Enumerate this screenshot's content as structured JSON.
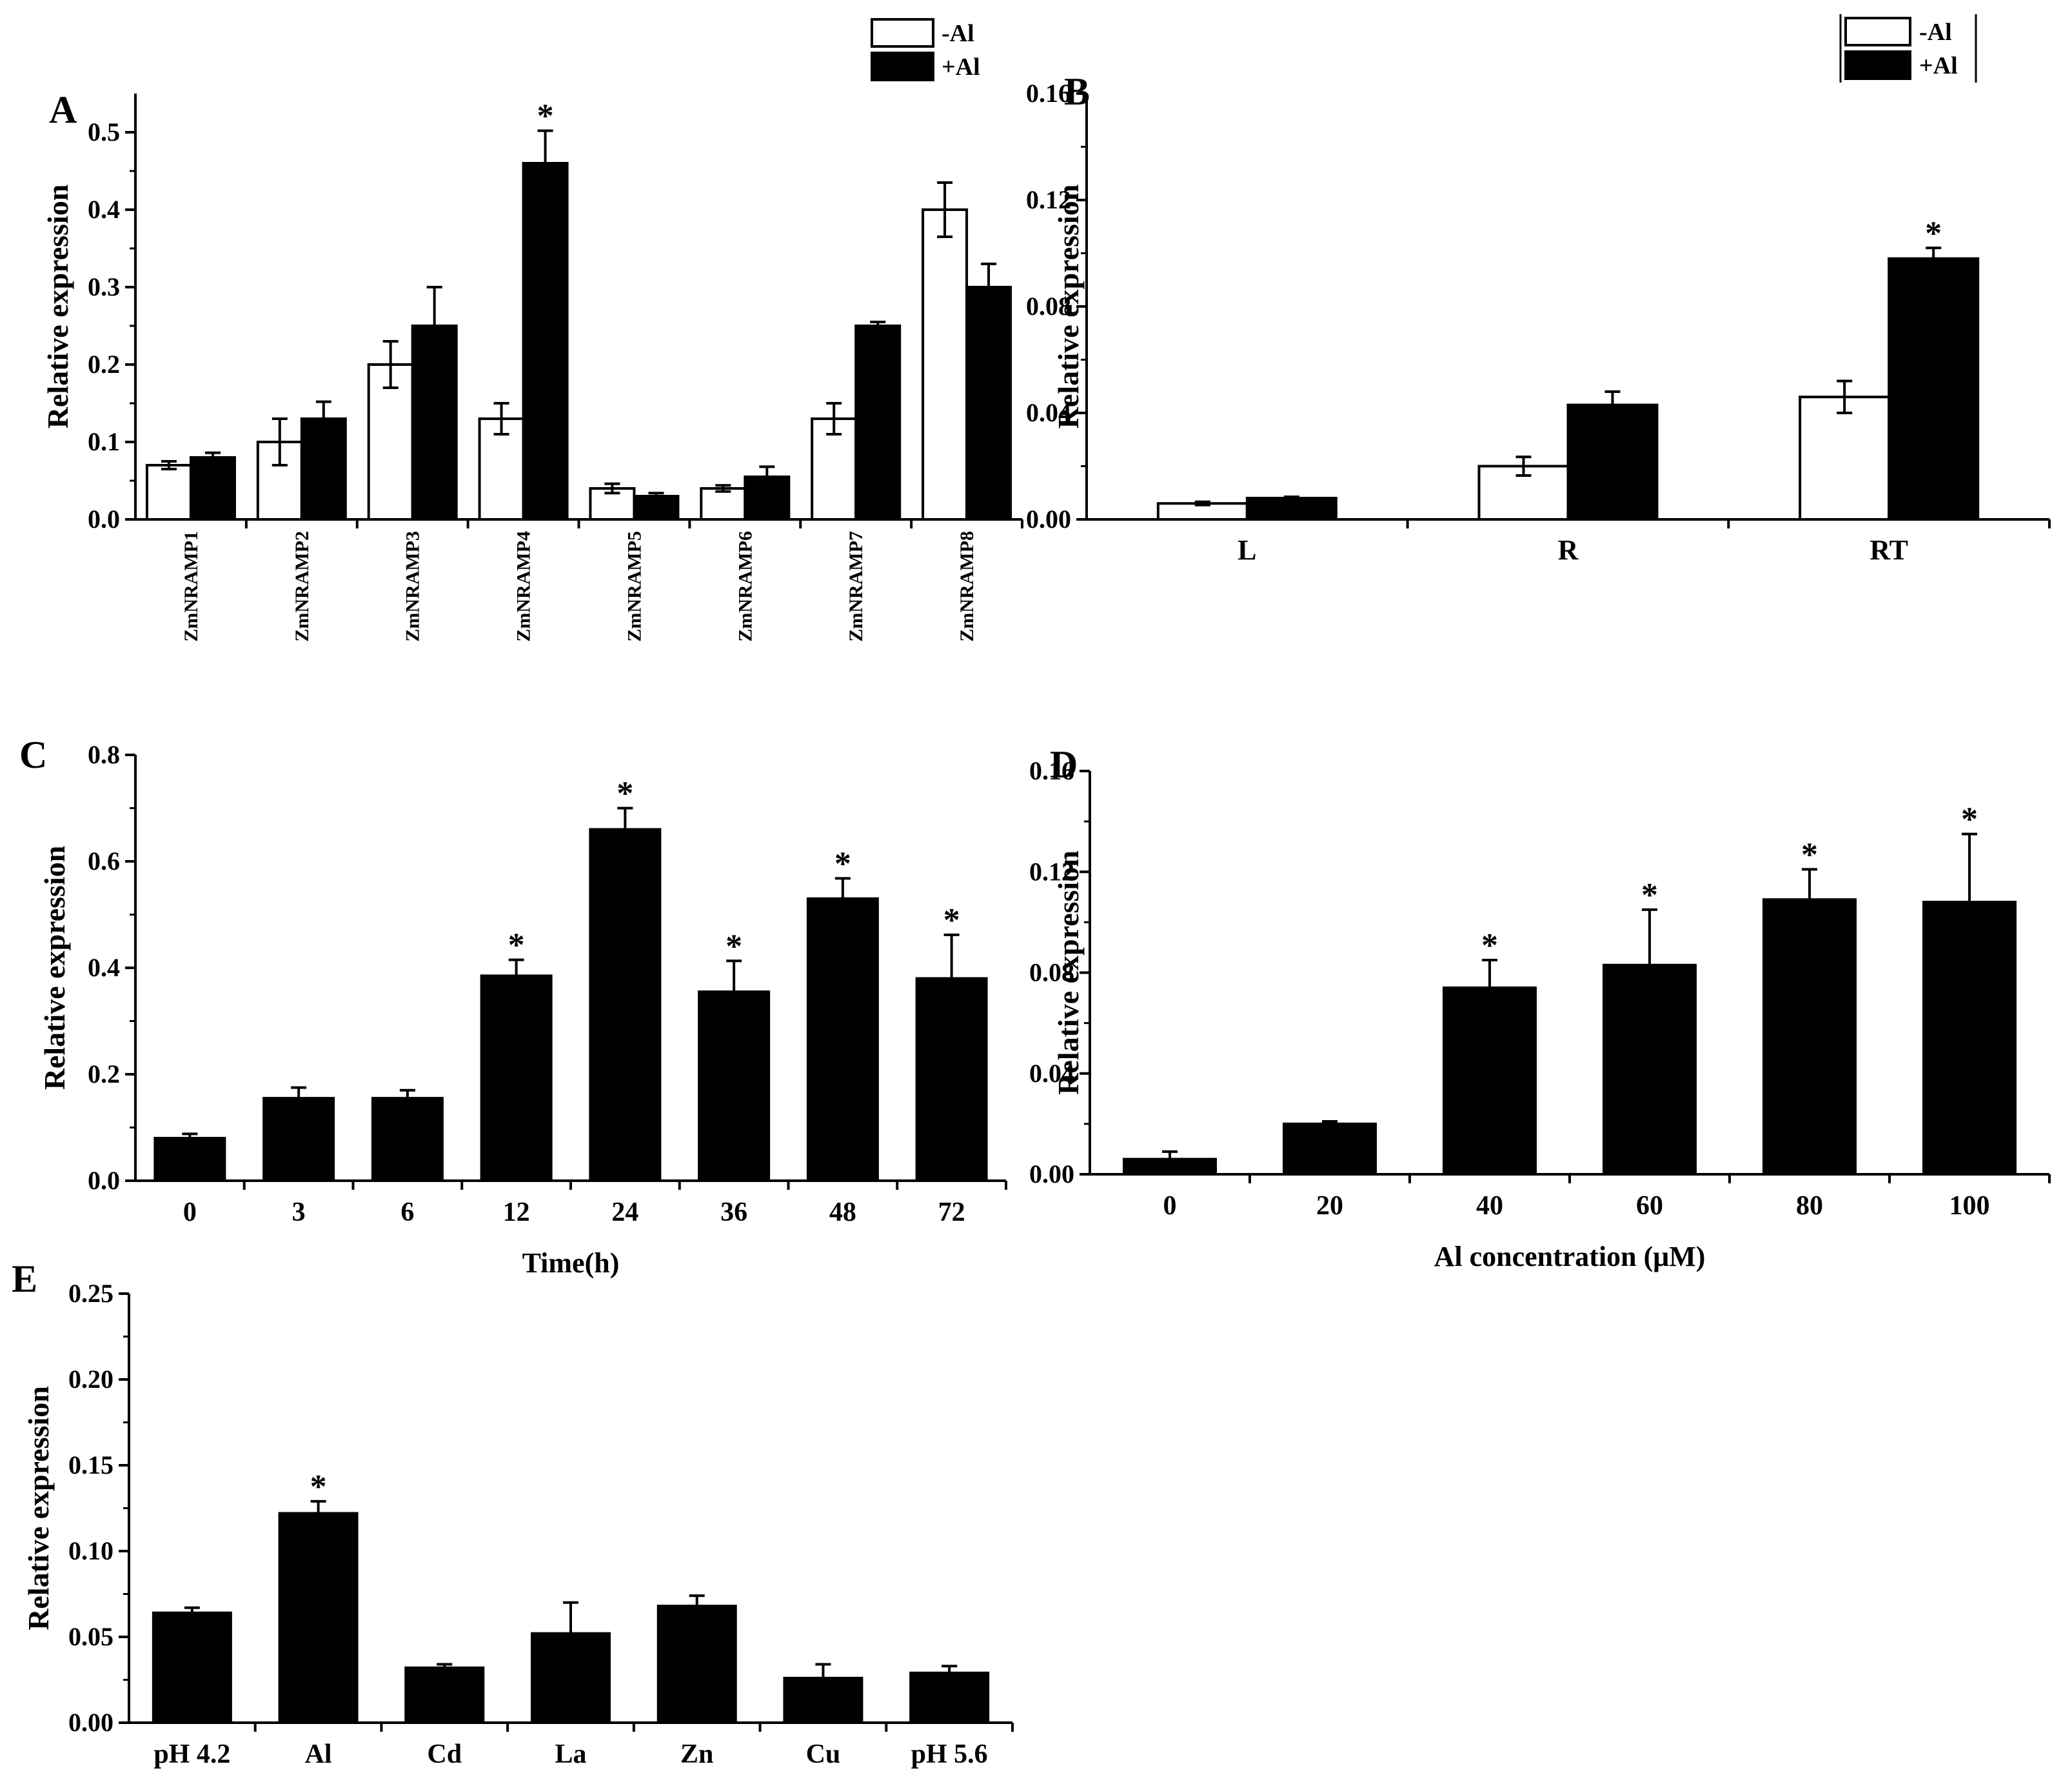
{
  "chart_data": [
    {
      "panel": "A",
      "type": "bar",
      "title": "",
      "xlabel": "",
      "ylabel": "Relative expression",
      "ylim": [
        0,
        0.55
      ],
      "yticks": [
        "0.0",
        "0.1",
        "0.2",
        "0.3",
        "0.4",
        "0.5"
      ],
      "categories": [
        "ZmNRAMP1",
        "ZmNRAMP2",
        "ZmNRAMP3",
        "ZmNRAMP4",
        "ZmNRAMP5",
        "ZmNRAMP6",
        "ZmNRAMP7",
        "ZmNRAMP8"
      ],
      "series": [
        {
          "name": "-Al",
          "color": "#ffffff",
          "values": [
            0.07,
            0.1,
            0.2,
            0.13,
            0.04,
            0.04,
            0.13,
            0.4
          ],
          "errors": [
            0.005,
            0.03,
            0.03,
            0.02,
            0.006,
            0.004,
            0.02,
            0.035
          ]
        },
        {
          "name": "+Al",
          "color": "#000000",
          "values": [
            0.08,
            0.13,
            0.25,
            0.46,
            0.03,
            0.055,
            0.25,
            0.3
          ],
          "errors": [
            0.006,
            0.022,
            0.05,
            0.042,
            0.004,
            0.013,
            0.005,
            0.03
          ]
        }
      ],
      "significance": [
        {
          "category": "ZmNRAMP4",
          "series": "+Al",
          "label": "*"
        }
      ],
      "legend": {
        "position": "top-right",
        "entries": [
          "-Al",
          "+Al"
        ]
      }
    },
    {
      "panel": "B",
      "type": "bar",
      "title": "",
      "xlabel": "",
      "ylabel": "Relative expression",
      "ylim": [
        0,
        0.16
      ],
      "yticks": [
        "0.00",
        "0.04",
        "0.08",
        "0.12",
        "0.16"
      ],
      "categories": [
        "L",
        "R",
        "RT"
      ],
      "series": [
        {
          "name": "-Al",
          "color": "#ffffff",
          "values": [
            0.006,
            0.02,
            0.046
          ],
          "errors": [
            0.0006,
            0.0035,
            0.006
          ]
        },
        {
          "name": "+Al",
          "color": "#000000",
          "values": [
            0.008,
            0.043,
            0.098
          ],
          "errors": [
            0.0005,
            0.005,
            0.004
          ]
        }
      ],
      "significance": [
        {
          "category": "RT",
          "series": "+Al",
          "label": "*"
        }
      ],
      "legend": {
        "position": "top-right",
        "entries": [
          "-Al",
          "+Al"
        ]
      }
    },
    {
      "panel": "C",
      "type": "bar",
      "title": "",
      "xlabel": "Time(h)",
      "ylabel": "Relative expression",
      "ylim": [
        0,
        0.8
      ],
      "yticks": [
        "0.0",
        "0.2",
        "0.4",
        "0.6",
        "0.8"
      ],
      "categories": [
        "0",
        "3",
        "6",
        "12",
        "24",
        "36",
        "48",
        "72"
      ],
      "series": [
        {
          "name": "",
          "color": "#000000",
          "values": [
            0.08,
            0.155,
            0.155,
            0.385,
            0.66,
            0.355,
            0.53,
            0.38
          ],
          "errors": [
            0.008,
            0.02,
            0.015,
            0.03,
            0.04,
            0.058,
            0.038,
            0.082
          ]
        }
      ],
      "significance": [
        {
          "category": "12",
          "label": "*"
        },
        {
          "category": "24",
          "label": "*"
        },
        {
          "category": "36",
          "label": "*"
        },
        {
          "category": "48",
          "label": "*"
        },
        {
          "category": "72",
          "label": "*"
        }
      ]
    },
    {
      "panel": "D",
      "type": "bar",
      "title": "",
      "xlabel": "Al concentration (μM)",
      "ylabel": "Relative expression",
      "ylim": [
        0,
        0.16
      ],
      "yticks": [
        "0.00",
        "0.04",
        "0.08",
        "0.12",
        "0.16"
      ],
      "categories": [
        "0",
        "20",
        "40",
        "60",
        "80",
        "100"
      ],
      "series": [
        {
          "name": "",
          "color": "#000000",
          "values": [
            0.006,
            0.02,
            0.074,
            0.083,
            0.109,
            0.108
          ],
          "errors": [
            0.003,
            0.001,
            0.011,
            0.022,
            0.012,
            0.027
          ]
        }
      ],
      "significance": [
        {
          "category": "40",
          "label": "*"
        },
        {
          "category": "60",
          "label": "*"
        },
        {
          "category": "80",
          "label": "*"
        },
        {
          "category": "100",
          "label": "*"
        }
      ]
    },
    {
      "panel": "E",
      "type": "bar",
      "title": "",
      "xlabel": "",
      "ylabel": "Relative expression",
      "ylim": [
        0,
        0.25
      ],
      "yticks": [
        "0.00",
        "0.05",
        "0.10",
        "0.15",
        "0.20",
        "0.25"
      ],
      "categories": [
        "pH 4.2",
        "Al",
        "Cd",
        "La",
        "Zn",
        "Cu",
        "pH 5.6"
      ],
      "series": [
        {
          "name": "",
          "color": "#000000",
          "values": [
            0.064,
            0.122,
            0.032,
            0.052,
            0.068,
            0.026,
            0.029
          ],
          "errors": [
            0.003,
            0.007,
            0.002,
            0.018,
            0.006,
            0.008,
            0.004
          ]
        }
      ],
      "significance": [
        {
          "category": "Al",
          "label": "*"
        }
      ]
    }
  ]
}
